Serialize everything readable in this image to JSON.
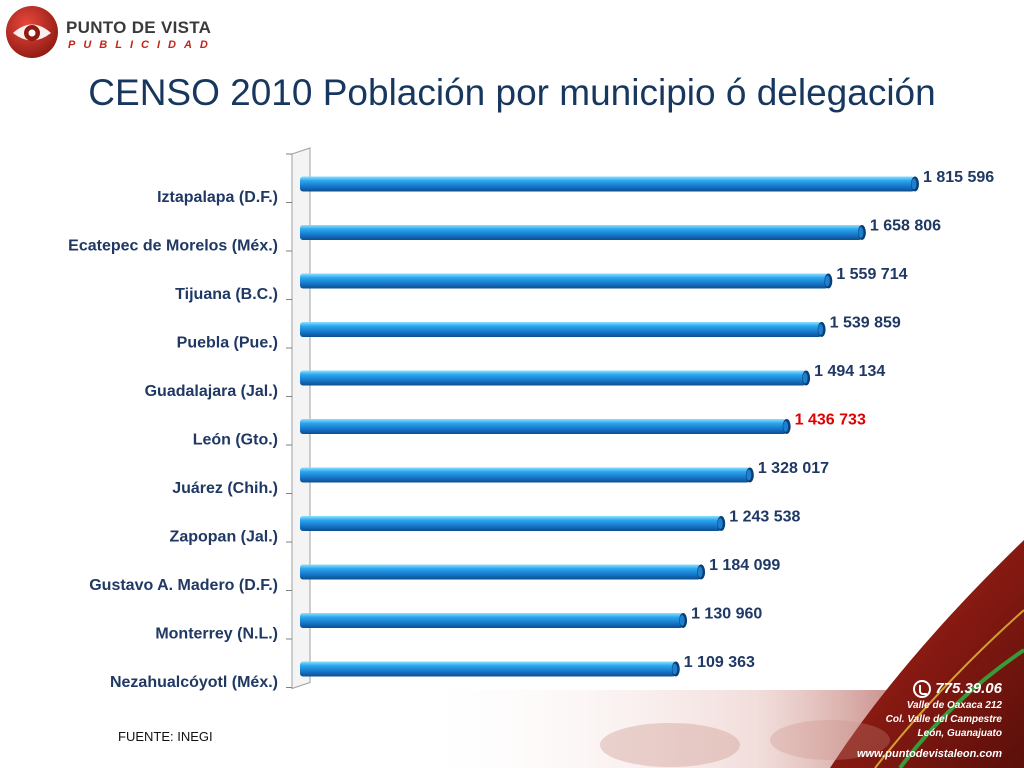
{
  "logo": {
    "name": "PUNTO DE VISTA",
    "sub": "PUBLICIDAD"
  },
  "slide": {
    "title": "CENSO 2010 Población por municipio ó delegación",
    "source": "FUENTE: INEGI"
  },
  "contact": {
    "phone": "775.39.06",
    "address": [
      "Valle de Oaxaca 212",
      "Col. Valle del Campestre",
      "León, Guanajuato"
    ],
    "web": "www.puntodevistaleon.com"
  },
  "colors": {
    "bar": "#1e88d6",
    "bar_dark": "#0b4f8f",
    "bar_light": "#6fd0ff",
    "highlight_label": "#e00000",
    "brand_red": "#c0261c"
  },
  "chart_data": {
    "type": "bar",
    "orientation": "horizontal",
    "title": "",
    "xlabel": "",
    "ylabel": "",
    "highlight_index": 5,
    "categories": [
      "Iztapalapa (D.F.)",
      "Ecatepec de Morelos (Méx.)",
      "Tijuana (B.C.)",
      "Puebla (Pue.)",
      "Guadalajara (Jal.)",
      "León (Gto.)",
      "Juárez (Chih.)",
      "Zapopan (Jal.)",
      "Gustavo A. Madero (D.F.)",
      "Monterrey (N.L.)",
      "Nezahualcóyotl (Méx.)"
    ],
    "values": [
      1815596,
      1658806,
      1559714,
      1539859,
      1494134,
      1436733,
      1328017,
      1243538,
      1184099,
      1130960,
      1109363
    ],
    "value_labels": [
      "1 815 596",
      "1 658 806",
      "1 559 714",
      "1 539 859",
      "1 494 134",
      "1 436 733",
      "1 328 017",
      "1 243 538",
      "1 184 099",
      "1 130 960",
      "1 109 363"
    ],
    "xlim": [
      0,
      1815596
    ]
  }
}
